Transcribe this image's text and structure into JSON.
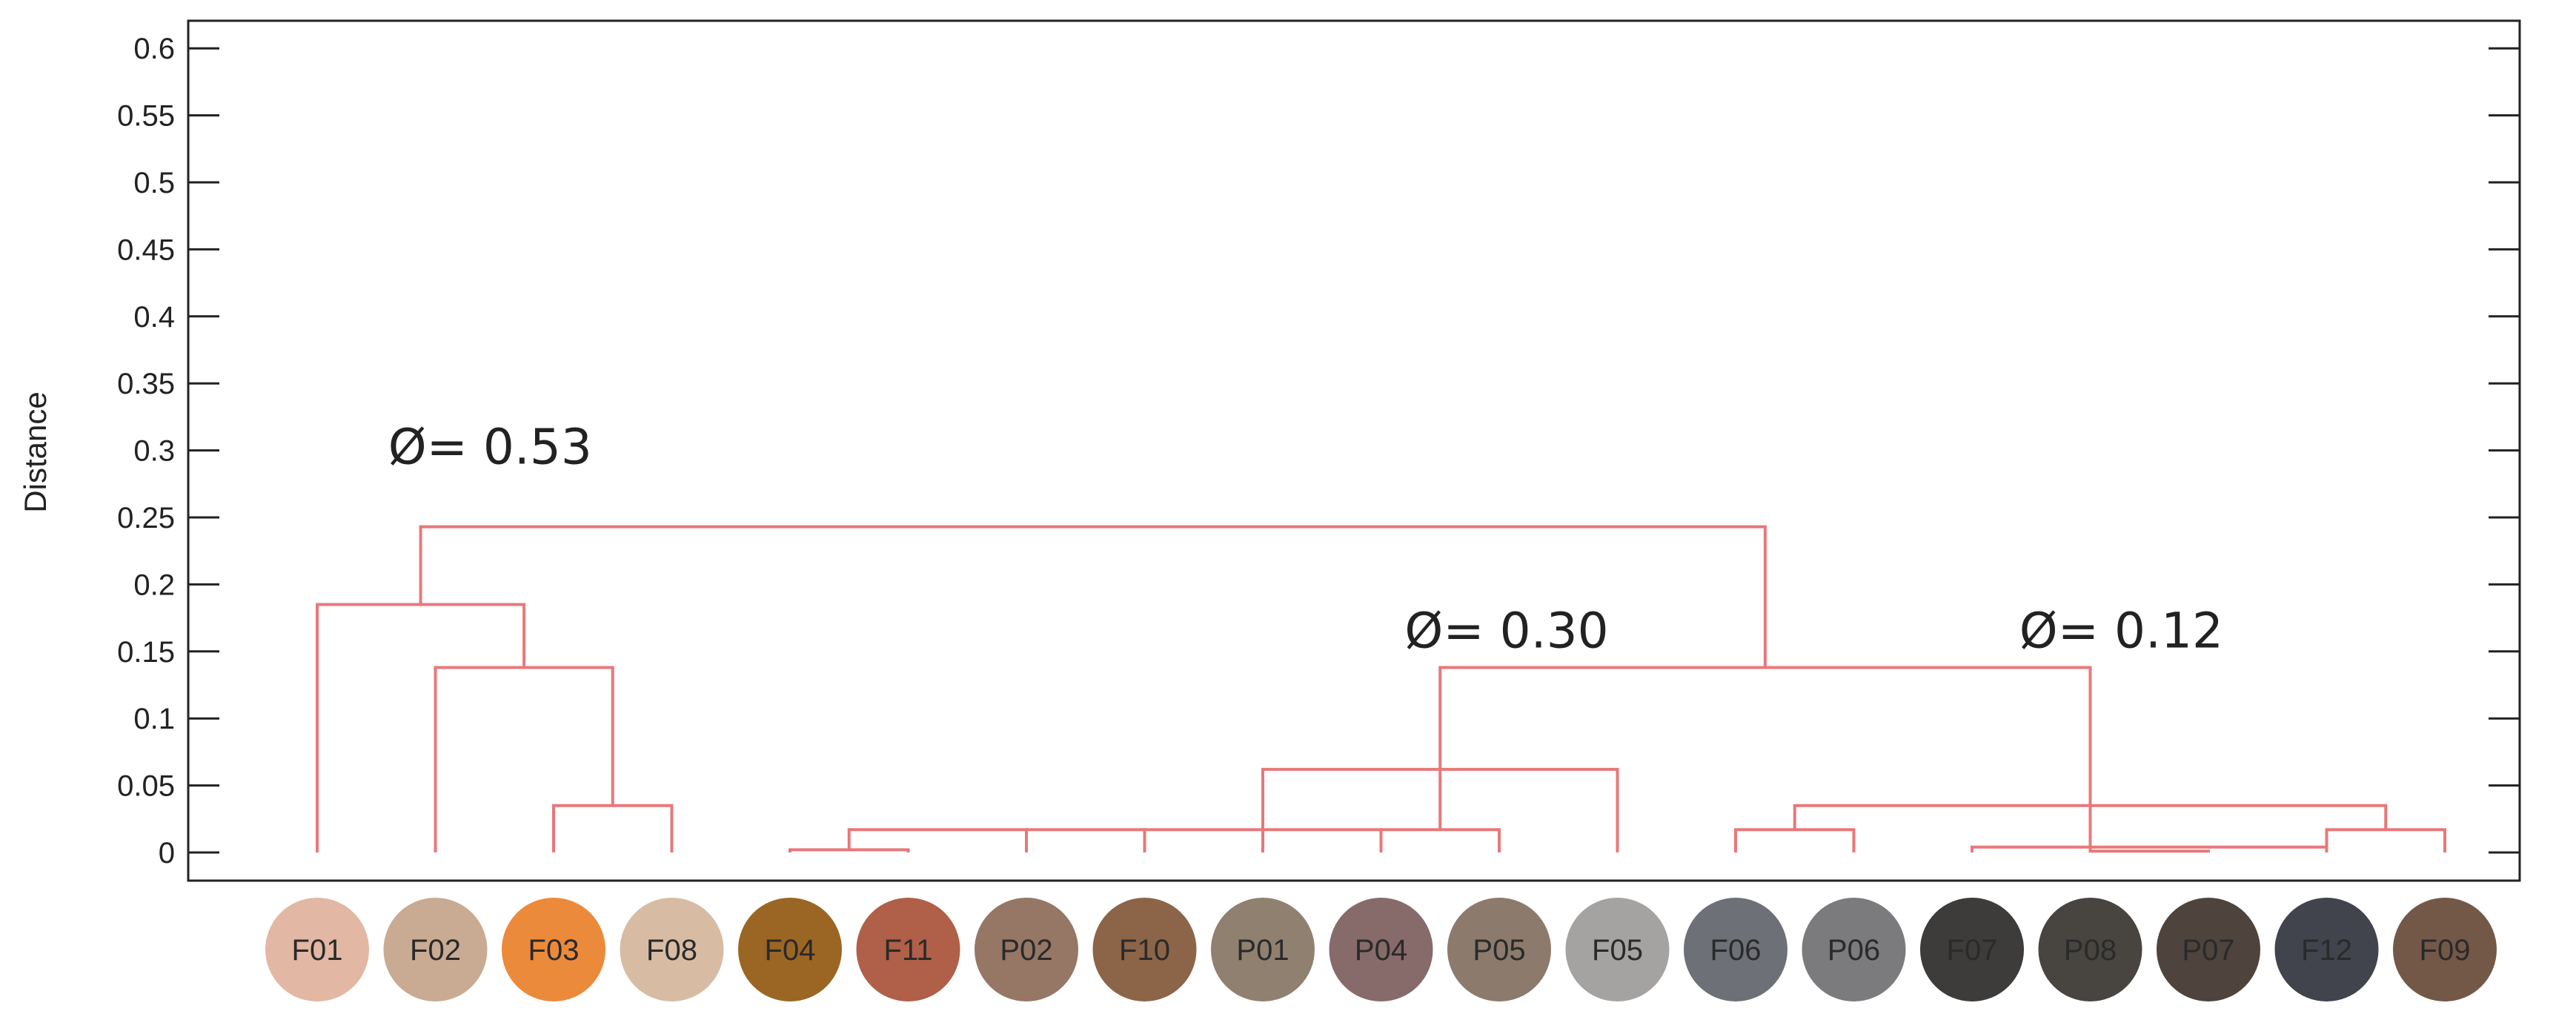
{
  "chart_data": {
    "type": "dendrogram",
    "ylabel": "Distance",
    "ylim": [
      0,
      0.61
    ],
    "yticks": [
      "0.6",
      "0.55",
      "0.5",
      "0.45",
      "0.4",
      "0.35",
      "0.3",
      "0.25",
      "0.2",
      "0.15",
      "0.1",
      "0.05",
      "0"
    ],
    "ytick_values": [
      0.6,
      0.55,
      0.5,
      0.45,
      0.4,
      0.35,
      0.3,
      0.25,
      0.2,
      0.15,
      0.1,
      0.05,
      0
    ],
    "grid": false,
    "link_color": "#e8787a",
    "leaves": [
      {
        "label": "F01",
        "color": "#e2b7a3"
      },
      {
        "label": "F02",
        "color": "#c8ab92"
      },
      {
        "label": "F03",
        "color": "#ec8a3c"
      },
      {
        "label": "F08",
        "color": "#d7bca3"
      },
      {
        "label": "F04",
        "color": "#9b6624"
      },
      {
        "label": "F11",
        "color": "#b05f48"
      },
      {
        "label": "P02",
        "color": "#967665"
      },
      {
        "label": "F10",
        "color": "#8c6448"
      },
      {
        "label": "P01",
        "color": "#908070"
      },
      {
        "label": "P04",
        "color": "#876a6a"
      },
      {
        "label": "P05",
        "color": "#8c7b6c"
      },
      {
        "label": "F05",
        "color": "#a5a3a2"
      },
      {
        "label": "F06",
        "color": "#6d7077"
      },
      {
        "label": "P06",
        "color": "#7b7a7c"
      },
      {
        "label": "F07",
        "color": "#3d3c3b"
      },
      {
        "label": "P08",
        "color": "#484541"
      },
      {
        "label": "P07",
        "color": "#4e433d"
      },
      {
        "label": "F12",
        "color": "#41434d"
      },
      {
        "label": "F09",
        "color": "#735848"
      }
    ],
    "links": [
      {
        "x": [
          3,
          4
        ],
        "height": 0.035
      },
      {
        "x": [
          2,
          3.5
        ],
        "height": 0.138
      },
      {
        "x": [
          1,
          2.75
        ],
        "height": 0.185
      },
      {
        "x": [
          5,
          6
        ],
        "height": 0.002
      },
      {
        "x": [
          5.5,
          7
        ],
        "height": 0.017
      },
      {
        "x": [
          7,
          8
        ],
        "height": 0.017
      },
      {
        "x": [
          8,
          9
        ],
        "height": 0.017
      },
      {
        "x": [
          9,
          10
        ],
        "height": 0.017
      },
      {
        "x": [
          10,
          11
        ],
        "height": 0.017
      },
      {
        "x": [
          9,
          12
        ],
        "height": 0.062
      },
      {
        "x": [
          13,
          14
        ],
        "height": 0.017
      },
      {
        "x": [
          16,
          17
        ],
        "height": 0.001
      },
      {
        "x": [
          15,
          18
        ],
        "height": 0.004
      },
      {
        "x": [
          18,
          19
        ],
        "height": 0.017
      },
      {
        "x": [
          13.5,
          18.5
        ],
        "height": 0.035
      },
      {
        "x": [
          10.5,
          16
        ],
        "height": 0.138
      },
      {
        "x": [
          1.875,
          13.25
        ],
        "height": 0.243
      }
    ],
    "annotations": [
      {
        "text": "Ø= 0.53",
        "x": 1.6,
        "y": 0.29
      },
      {
        "text": "Ø= 0.30",
        "x": 10.2,
        "y": 0.153
      },
      {
        "text": "Ø= 0.12",
        "x": 15.4,
        "y": 0.153
      }
    ]
  }
}
